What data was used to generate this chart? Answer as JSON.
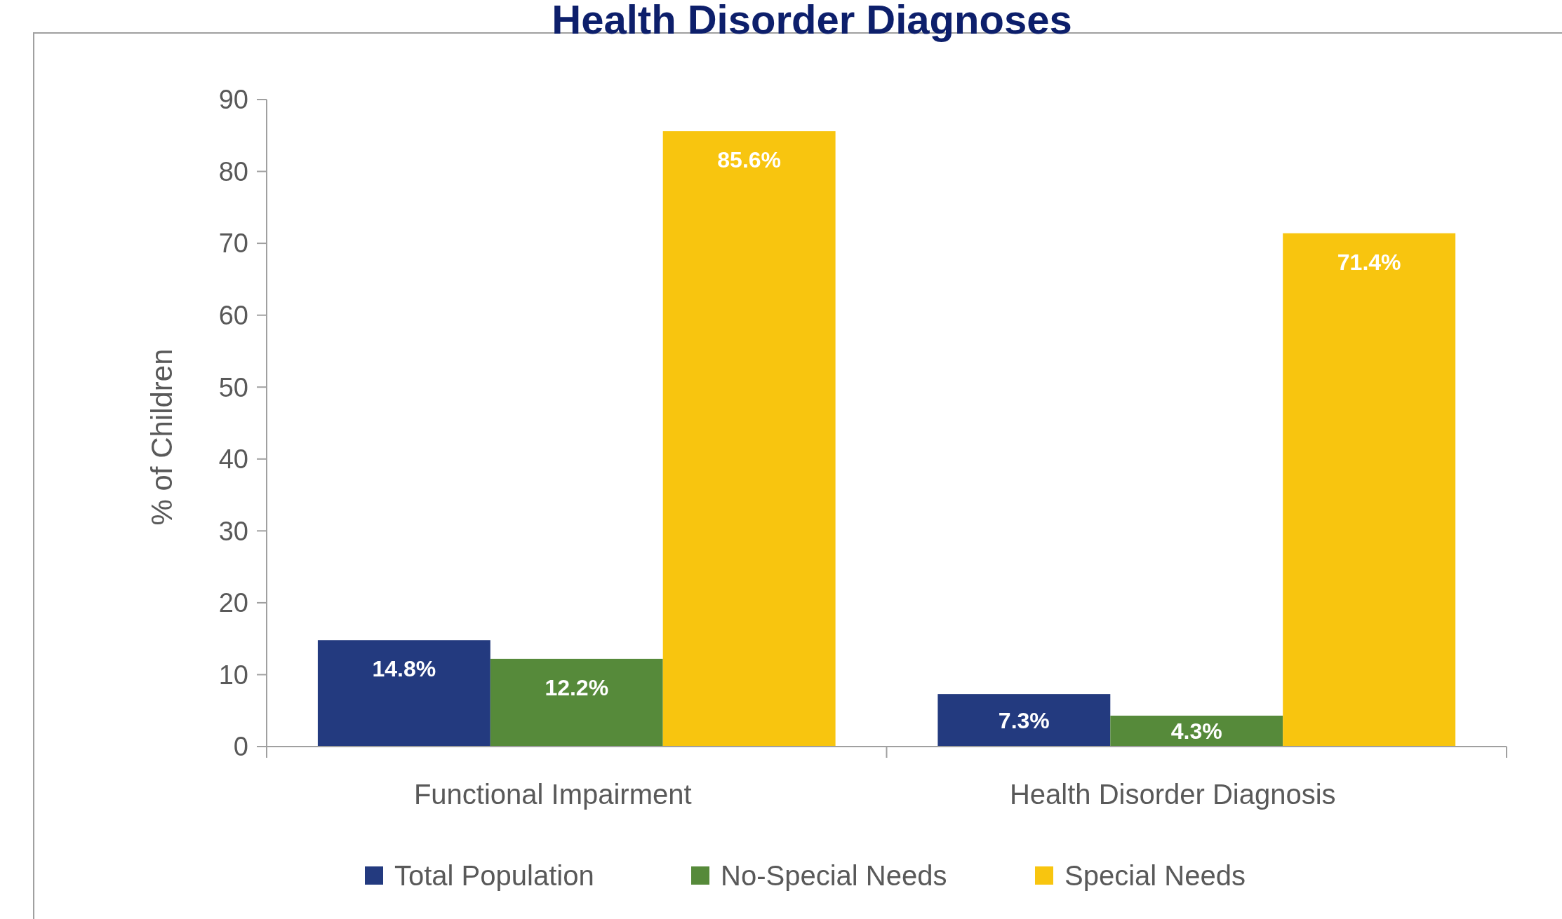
{
  "chart_data": {
    "type": "bar",
    "title": "Health Disorder Diagnoses",
    "ylabel": "% of Children",
    "categories": [
      "Functional Impairment",
      "Health Disorder Diagnosis"
    ],
    "series": [
      {
        "name": "Total Population",
        "color": "#233a7f",
        "values": [
          14.8,
          7.3
        ],
        "value_labels": [
          "14.8%",
          "7.3%"
        ]
      },
      {
        "name": "No-Special Needs",
        "color": "#568a3a",
        "values": [
          12.2,
          4.3
        ],
        "value_labels": [
          "12.2%",
          "4.3%"
        ]
      },
      {
        "name": "Special Needs",
        "color": "#f8c50f",
        "values": [
          85.6,
          71.4
        ],
        "value_labels": [
          "85.6%",
          "71.4%"
        ]
      }
    ],
    "ylim": [
      0,
      90
    ],
    "yticks": [
      0,
      10,
      20,
      30,
      40,
      50,
      60,
      70,
      80,
      90
    ],
    "grid": false,
    "legend": "bottom"
  }
}
